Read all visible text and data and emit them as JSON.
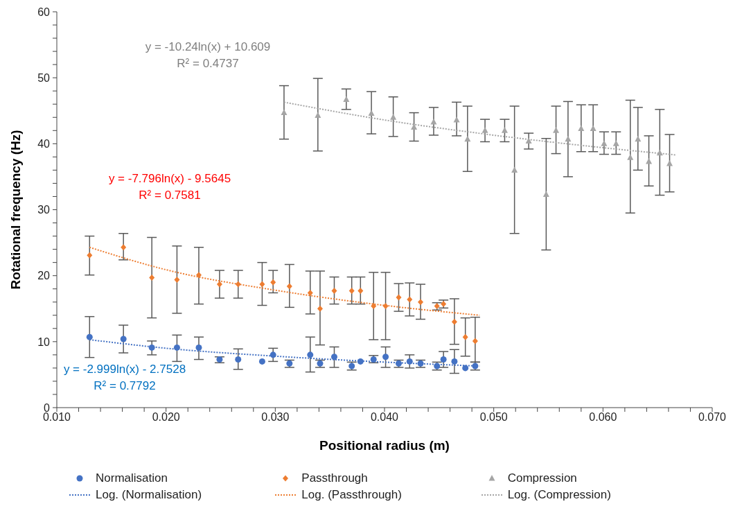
{
  "chart_data": {
    "type": "scatter",
    "xlabel": "Positional radius (m)",
    "ylabel": "Rotational frequency (Hz)",
    "xlim": [
      0.01,
      0.07
    ],
    "xticks": [
      {
        "value": 0.01,
        "label": "0.010"
      },
      {
        "value": 0.012,
        "label": null
      },
      {
        "value": 0.014,
        "label": null
      },
      {
        "value": 0.016,
        "label": null
      },
      {
        "value": 0.018,
        "label": null
      },
      {
        "value": 0.02,
        "label": "0.020"
      },
      {
        "value": 0.022,
        "label": null
      },
      {
        "value": 0.024,
        "label": null
      },
      {
        "value": 0.026,
        "label": null
      },
      {
        "value": 0.028,
        "label": null
      },
      {
        "value": 0.03,
        "label": "0.030"
      },
      {
        "value": 0.032,
        "label": null
      },
      {
        "value": 0.034,
        "label": null
      },
      {
        "value": 0.036,
        "label": null
      },
      {
        "value": 0.038,
        "label": null
      },
      {
        "value": 0.04,
        "label": "0.040"
      },
      {
        "value": 0.042,
        "label": null
      },
      {
        "value": 0.044,
        "label": null
      },
      {
        "value": 0.046,
        "label": null
      },
      {
        "value": 0.048,
        "label": null
      },
      {
        "value": 0.05,
        "label": "0.050"
      },
      {
        "value": 0.052,
        "label": null
      },
      {
        "value": 0.054,
        "label": null
      },
      {
        "value": 0.056,
        "label": null
      },
      {
        "value": 0.058,
        "label": null
      },
      {
        "value": 0.06,
        "label": "0.060"
      },
      {
        "value": 0.062,
        "label": null
      },
      {
        "value": 0.064,
        "label": null
      },
      {
        "value": 0.066,
        "label": null
      },
      {
        "value": 0.068,
        "label": null
      },
      {
        "value": 0.07,
        "label": "0.070"
      }
    ],
    "ylim": [
      0,
      60
    ],
    "yticks": [
      0,
      {
        "value": 2,
        "label": null
      },
      {
        "value": 4,
        "label": null
      },
      {
        "value": 6,
        "label": null
      },
      {
        "value": 8,
        "label": null
      },
      10,
      {
        "value": 12,
        "label": null
      },
      {
        "value": 14,
        "label": null
      },
      {
        "value": 16,
        "label": null
      },
      {
        "value": 18,
        "label": null
      },
      20,
      {
        "value": 22,
        "label": null
      },
      {
        "value": 24,
        "label": null
      },
      {
        "value": 26,
        "label": null
      },
      {
        "value": 28,
        "label": null
      },
      30,
      {
        "value": 32,
        "label": null
      },
      {
        "value": 34,
        "label": null
      },
      {
        "value": 36,
        "label": null
      },
      {
        "value": 38,
        "label": null
      },
      40,
      {
        "value": 42,
        "label": null
      },
      {
        "value": 44,
        "label": null
      },
      {
        "value": 46,
        "label": null
      },
      {
        "value": 48,
        "label": null
      },
      50,
      {
        "value": 52,
        "label": null
      },
      {
        "value": 54,
        "label": null
      },
      {
        "value": 56,
        "label": null
      },
      {
        "value": 58,
        "label": null
      },
      60
    ],
    "legend": "bottom",
    "series": [
      {
        "name": "Normalisation",
        "marker": "circle",
        "color": "#4472c4",
        "x": [
          0.013,
          0.0161,
          0.0187,
          0.021,
          0.023,
          0.0249,
          0.0266,
          0.0288,
          0.0298,
          0.0313,
          0.0332,
          0.0341,
          0.0354,
          0.037,
          0.0378,
          0.039,
          0.0401,
          0.0413,
          0.0423,
          0.0433,
          0.0448,
          0.0454,
          0.0464,
          0.0474,
          0.0483
        ],
        "values": [
          10.7,
          10.4,
          9.1,
          9.1,
          9.1,
          7.3,
          7.3,
          7.0,
          8.0,
          6.7,
          8.0,
          6.7,
          7.7,
          6.3,
          7.0,
          7.3,
          7.7,
          6.7,
          7.0,
          6.7,
          6.3,
          7.3,
          7.0,
          6.0,
          6.3
        ],
        "errors": [
          [
            7.6,
            13.8
          ],
          [
            8.3,
            12.5
          ],
          [
            8.0,
            10.1
          ],
          [
            7.0,
            11.0
          ],
          [
            7.3,
            10.7
          ],
          [
            6.8,
            7.7
          ],
          [
            5.8,
            8.9
          ],
          null,
          [
            7.0,
            9.0
          ],
          [
            6.1,
            7.2
          ],
          [
            5.4,
            10.7
          ],
          [
            6.1,
            7.2
          ],
          [
            6.1,
            9.2
          ],
          [
            5.7,
            6.9
          ],
          null,
          [
            6.8,
            7.9
          ],
          [
            6.1,
            9.2
          ],
          [
            6.1,
            7.2
          ],
          [
            6.0,
            8.0
          ],
          [
            6.1,
            7.2
          ],
          [
            5.7,
            6.9
          ],
          [
            6.1,
            8.5
          ],
          [
            5.2,
            8.8
          ],
          null,
          [
            5.7,
            6.9
          ]
        ]
      },
      {
        "name": "Passthrough",
        "marker": "diamond",
        "color": "#ed7d31",
        "x": [
          0.013,
          0.0161,
          0.0187,
          0.021,
          0.023,
          0.0249,
          0.0266,
          0.0288,
          0.0298,
          0.0313,
          0.0332,
          0.0341,
          0.0354,
          0.037,
          0.0378,
          0.039,
          0.0401,
          0.0413,
          0.0423,
          0.0433,
          0.0448,
          0.0454,
          0.0464,
          0.0474,
          0.0483
        ],
        "values": [
          23.1,
          24.3,
          19.7,
          19.4,
          20.1,
          18.7,
          18.7,
          18.7,
          19.0,
          18.4,
          17.4,
          15.0,
          17.7,
          17.7,
          17.7,
          15.4,
          15.4,
          16.7,
          16.4,
          16.0,
          15.4,
          15.7,
          13.0,
          10.7,
          10.1
        ],
        "errors": [
          [
            20.1,
            26.0
          ],
          [
            22.4,
            26.4
          ],
          [
            13.6,
            25.8
          ],
          [
            14.3,
            24.5
          ],
          [
            15.7,
            24.3
          ],
          [
            16.6,
            20.8
          ],
          [
            16.6,
            20.8
          ],
          [
            15.5,
            22.0
          ],
          [
            17.4,
            20.8
          ],
          [
            15.2,
            21.7
          ],
          [
            14.2,
            20.7
          ],
          [
            9.5,
            20.7
          ],
          [
            15.7,
            19.8
          ],
          [
            15.7,
            19.8
          ],
          [
            15.7,
            19.8
          ],
          [
            10.3,
            20.5
          ],
          [
            10.3,
            20.5
          ],
          [
            14.6,
            18.8
          ],
          [
            13.9,
            18.9
          ],
          [
            13.4,
            18.7
          ],
          [
            14.8,
            15.9
          ],
          [
            15.1,
            16.3
          ],
          [
            9.6,
            16.5
          ],
          [
            7.8,
            13.6
          ],
          [
            6.9,
            13.7
          ]
        ]
      },
      {
        "name": "Compression",
        "marker": "triangle",
        "color": "#a5a5a5",
        "x": [
          0.0308,
          0.0339,
          0.0365,
          0.0388,
          0.0408,
          0.0427,
          0.0445,
          0.0466,
          0.0476,
          0.0492,
          0.051,
          0.0519,
          0.0532,
          0.0548,
          0.0557,
          0.0568,
          0.058,
          0.0591,
          0.0601,
          0.0612,
          0.0625,
          0.0632,
          0.0642,
          0.0652,
          0.0661
        ],
        "values": [
          44.7,
          44.3,
          46.7,
          44.6,
          44.0,
          42.5,
          43.3,
          43.6,
          40.7,
          42.0,
          42.0,
          36.0,
          40.4,
          32.3,
          42.0,
          40.7,
          42.3,
          42.3,
          40.0,
          40.0,
          37.9,
          40.7,
          37.3,
          38.6,
          37.0
        ],
        "errors": [
          [
            40.7,
            48.8
          ],
          [
            38.9,
            49.9
          ],
          [
            45.2,
            48.3
          ],
          [
            41.5,
            47.9
          ],
          [
            41.1,
            47.1
          ],
          [
            40.4,
            44.7
          ],
          [
            41.3,
            45.5
          ],
          [
            41.2,
            46.3
          ],
          [
            35.8,
            45.7
          ],
          [
            40.3,
            43.7
          ],
          [
            40.3,
            43.7
          ],
          [
            26.4,
            45.7
          ],
          [
            39.2,
            41.6
          ],
          [
            23.9,
            40.8
          ],
          [
            38.5,
            45.7
          ],
          [
            35.0,
            46.4
          ],
          [
            38.8,
            45.9
          ],
          [
            38.8,
            45.9
          ],
          [
            38.4,
            41.8
          ],
          [
            38.4,
            41.8
          ],
          [
            29.5,
            46.6
          ],
          [
            36.0,
            45.5
          ],
          [
            33.6,
            41.2
          ],
          [
            32.2,
            45.2
          ],
          [
            32.7,
            41.4
          ]
        ]
      },
      {
        "name": "Log. (Normalisation)",
        "type": "line",
        "line_style": "dotted",
        "color": "#4472c4",
        "x": [
          0.013,
          0.02,
          0.03,
          0.04,
          0.0487
        ],
        "values": [
          10.3,
          9.0,
          7.8,
          6.9,
          6.3
        ]
      },
      {
        "name": "Log. (Passthrough)",
        "type": "line",
        "line_style": "dotted",
        "color": "#ed7d31",
        "x": [
          0.013,
          0.02,
          0.03,
          0.04,
          0.0487
        ],
        "values": [
          24.3,
          20.9,
          17.8,
          15.5,
          14.0
        ]
      },
      {
        "name": "Log. (Compression)",
        "type": "line",
        "line_style": "dotted",
        "color": "#a5a5a5",
        "x": [
          0.0308,
          0.04,
          0.05,
          0.06,
          0.0667
        ],
        "values": [
          46.3,
          43.6,
          41.3,
          39.4,
          38.3
        ]
      }
    ],
    "annotations": [
      "y = -10.24ln(x) + 10.609",
      "R² = 0.4737",
      "y = -7.796ln(x) - 9.5645",
      "R² = 0.7581",
      "y = -2.999ln(x) - 2.7528",
      "R² = 0.7792"
    ]
  }
}
